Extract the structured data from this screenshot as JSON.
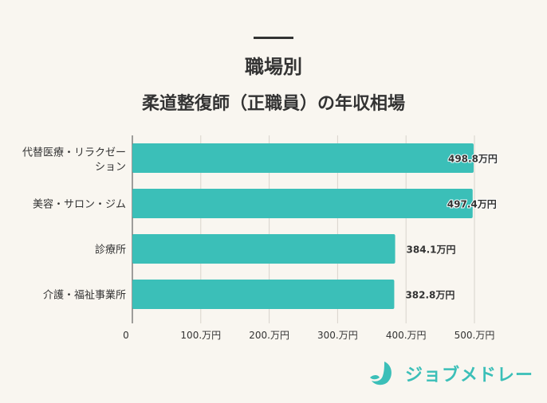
{
  "title": "職場別",
  "subtitle": "柔道整復師（正職員）の年収相場",
  "brand": {
    "name": "ジョブメドレー",
    "color": "#3bbfb8"
  },
  "chart_data": {
    "type": "bar",
    "orientation": "horizontal",
    "categories": [
      [
        "代替医療・リラクゼー",
        "ション"
      ],
      [
        "美容・サロン・ジム"
      ],
      [
        "診療所"
      ],
      [
        "介護・福祉事業所"
      ]
    ],
    "values": [
      498.8,
      497.4,
      384.1,
      382.8
    ],
    "value_labels": [
      "498.8万円",
      "497.4万円",
      "384.1万円",
      "382.8万円"
    ],
    "xlim": [
      0,
      500
    ],
    "xticks": [
      0,
      100,
      200,
      300,
      400,
      500
    ],
    "xtick_labels": [
      "0",
      "100.万円",
      "200.万円",
      "300.万円",
      "400.万円",
      "500.万円"
    ],
    "grid": true,
    "bar_color": "#3bbfb8"
  }
}
